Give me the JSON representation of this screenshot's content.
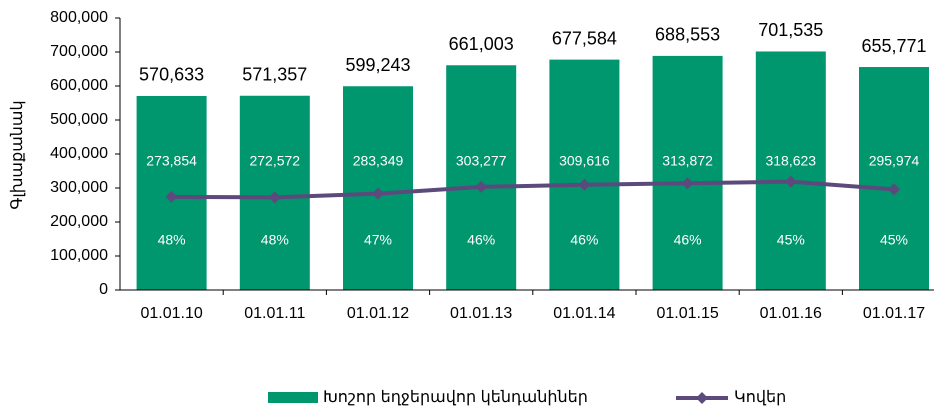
{
  "chart_data": {
    "type": "bar_line",
    "y_label": "Գլխաքանակ",
    "categories": [
      "01.01.10",
      "01.01.11",
      "01.01.12",
      "01.01.13",
      "01.01.14",
      "01.01.15",
      "01.01.16",
      "01.01.17"
    ],
    "series": [
      {
        "name": "Խոշոր եղջերավոր կենդանիներ",
        "type": "bar",
        "color": "#00966e",
        "values": [
          570633,
          571357,
          599243,
          661003,
          677584,
          688553,
          701535,
          655771
        ],
        "value_labels": [
          "570,633",
          "571,357",
          "599,243",
          "661,003",
          "677,584",
          "688,553",
          "701,535",
          "655,771"
        ]
      },
      {
        "name": "Կովեր",
        "type": "line",
        "color": "#5c4a7d",
        "values": [
          273854,
          272572,
          283349,
          303277,
          309616,
          313872,
          318623,
          295974
        ],
        "value_labels": [
          "273,854",
          "272,572",
          "283,349",
          "303,277",
          "309,616",
          "313,872",
          "318,623",
          "295,974"
        ]
      }
    ],
    "shares": {
      "values": [
        48,
        48,
        47,
        46,
        46,
        46,
        45,
        45
      ],
      "value_labels": [
        "48%",
        "48%",
        "47%",
        "46%",
        "46%",
        "46%",
        "45%",
        "45%"
      ]
    },
    "ylim": [
      0,
      800000
    ],
    "yticks": [
      0,
      {
        "value": 100000,
        "label": "100,000"
      },
      {
        "value": 200000,
        "label": "200,000"
      },
      {
        "value": 300000,
        "label": "300,000"
      },
      {
        "value": 400000,
        "label": "400,000"
      },
      {
        "value": 500000,
        "label": "500,000"
      },
      {
        "value": 600000,
        "label": "600,000"
      },
      {
        "value": 700000,
        "label": "700,000"
      },
      {
        "value": 800000,
        "label": "800,000"
      }
    ],
    "legend": "bottom"
  }
}
